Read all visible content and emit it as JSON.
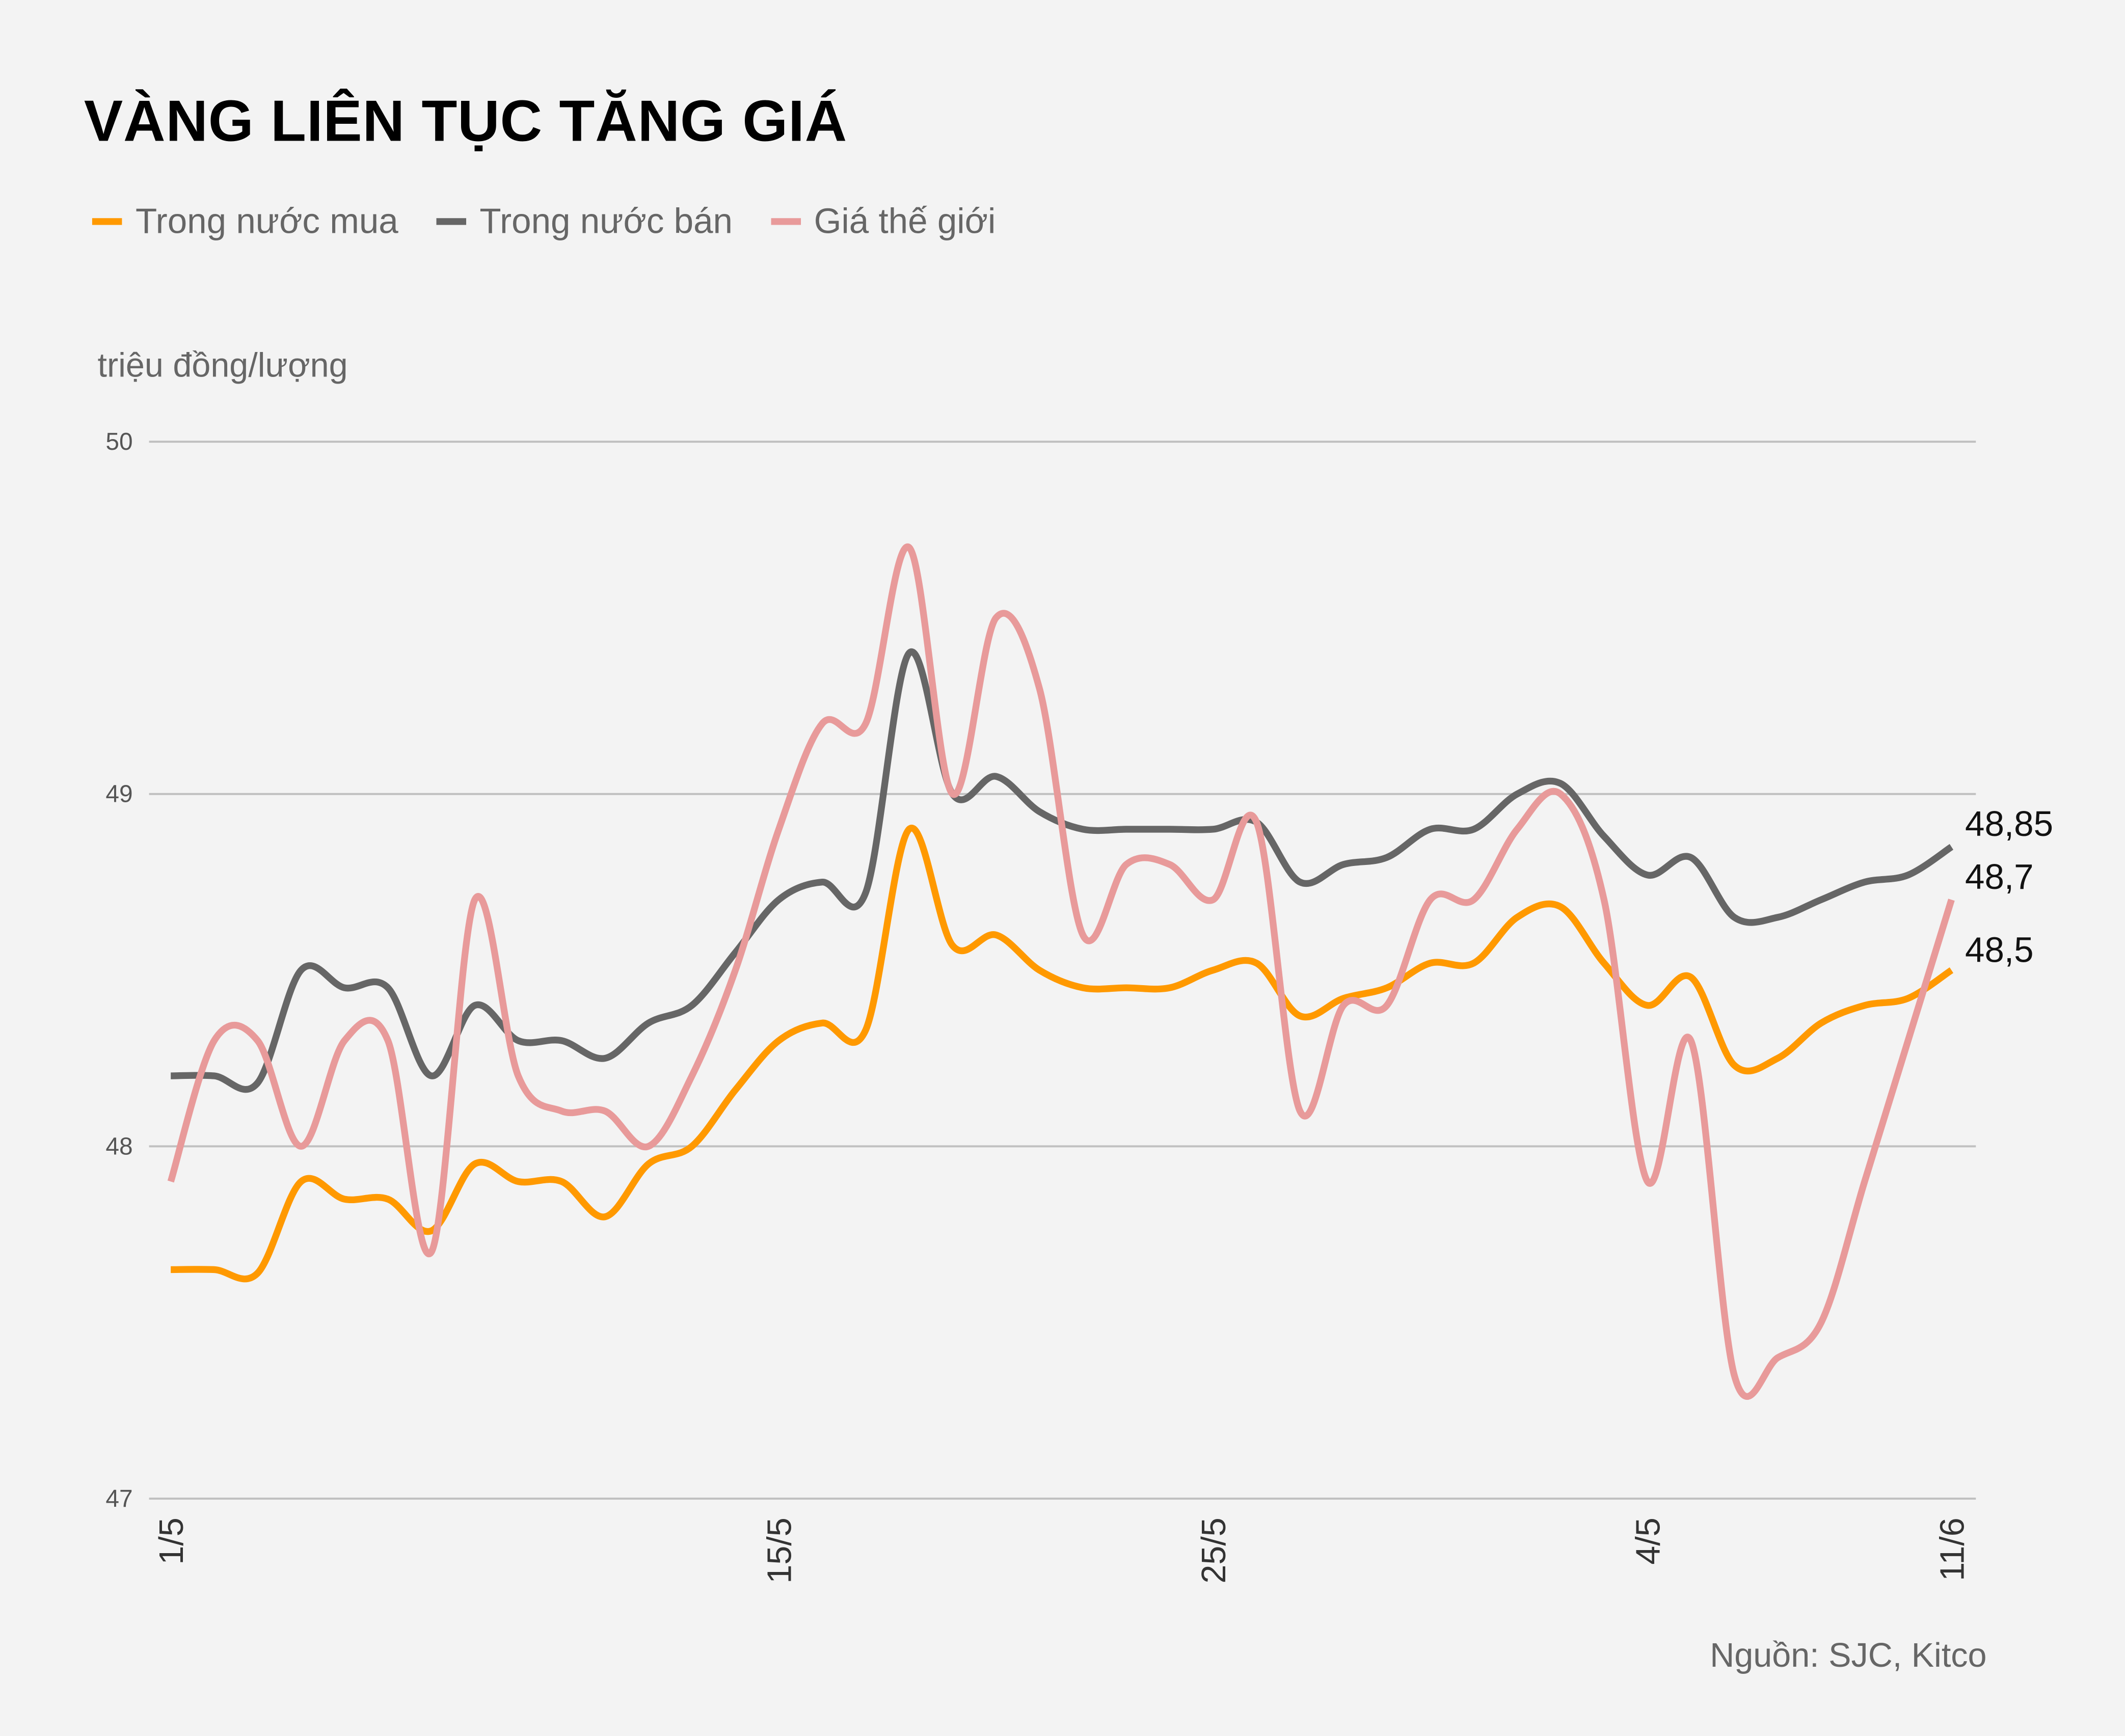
{
  "title": "VÀNG LIÊN TỤC TĂNG GIÁ",
  "unit_label": "triệu đồng/lượng",
  "source": "Nguồn: SJC, Kitco",
  "chart_data": {
    "type": "line",
    "smoothed": true,
    "title": "VÀNG LIÊN TỤC TĂNG GIÁ",
    "ylabel": "triệu đồng/lượng",
    "ylim": [
      47,
      50
    ],
    "y_ticks": [
      "47",
      "48",
      "49",
      "50"
    ],
    "y_tick_values": [
      47,
      48,
      49,
      50
    ],
    "grid": "horizontal",
    "legend_position": "top-left",
    "x_ticks": [
      {
        "index": 0,
        "label": "1/5"
      },
      {
        "index": 14,
        "label": "15/5"
      },
      {
        "index": 24,
        "label": "25/5"
      },
      {
        "index": 34,
        "label": "4/5"
      },
      {
        "index": 41,
        "label": "11/6"
      }
    ],
    "series": [
      {
        "name": "Trong nước mua",
        "color": "#ff9900",
        "end_label": "48,5",
        "values": [
          47.65,
          47.65,
          47.64,
          47.9,
          47.85,
          47.85,
          47.76,
          47.95,
          47.9,
          47.9,
          47.8,
          47.95,
          48.0,
          48.16,
          48.3,
          48.35,
          48.33,
          48.9,
          48.57,
          48.6,
          48.5,
          48.45,
          48.45,
          48.45,
          48.5,
          48.52,
          48.37,
          48.42,
          48.45,
          48.52,
          48.52,
          48.65,
          48.68,
          48.52,
          48.4,
          48.48,
          48.23,
          48.25,
          48.35,
          48.4,
          48.42,
          48.5
        ]
      },
      {
        "name": "Trong nước bán",
        "color": "#666666",
        "end_label": "48,85",
        "values": [
          48.2,
          48.2,
          48.18,
          48.5,
          48.45,
          48.45,
          48.2,
          48.4,
          48.3,
          48.3,
          48.25,
          48.35,
          48.4,
          48.55,
          48.7,
          48.75,
          48.72,
          49.4,
          49.0,
          49.05,
          48.95,
          48.9,
          48.9,
          48.9,
          48.9,
          48.92,
          48.75,
          48.8,
          48.82,
          48.9,
          48.9,
          49.0,
          49.03,
          48.88,
          48.77,
          48.82,
          48.65,
          48.65,
          48.7,
          48.75,
          48.77,
          48.85
        ]
      },
      {
        "name": "Giá thế giới",
        "color": "#e89a9a",
        "end_label": "48,7",
        "values": [
          47.9,
          48.3,
          48.3,
          48.0,
          48.3,
          48.3,
          47.7,
          48.7,
          48.2,
          48.1,
          48.1,
          48.0,
          48.2,
          48.5,
          48.9,
          49.2,
          49.2,
          49.7,
          49.0,
          49.5,
          49.3,
          48.6,
          48.8,
          48.8,
          48.7,
          48.92,
          48.1,
          48.4,
          48.4,
          48.7,
          48.7,
          48.9,
          49.0,
          48.7,
          47.9,
          48.3,
          47.35,
          47.4,
          47.5,
          47.9,
          48.3,
          48.7
        ]
      }
    ]
  }
}
